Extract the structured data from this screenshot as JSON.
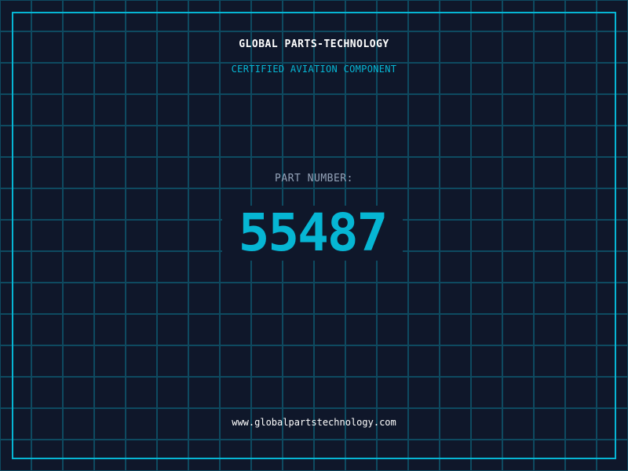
{
  "header": {
    "title": "GLOBAL PARTS-TECHNOLOGY",
    "subtitle": "CERTIFIED AVIATION COMPONENT"
  },
  "part": {
    "label": "PART NUMBER:",
    "number": "55487"
  },
  "footer": {
    "url": "www.globalpartstechnology.com"
  },
  "colors": {
    "background": "#0f172a",
    "grid": "#0e4a60",
    "accent": "#06b6d4",
    "label": "#94a3b8"
  }
}
